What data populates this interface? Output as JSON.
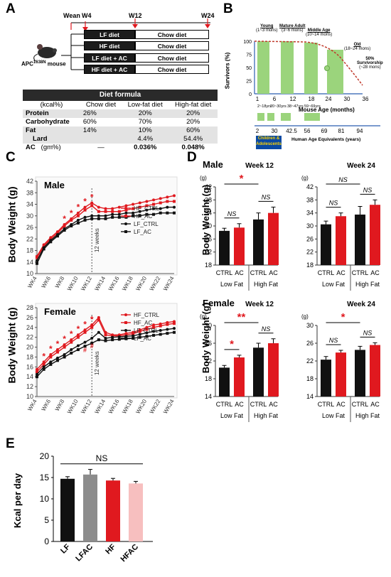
{
  "panelA": {
    "label": "A",
    "timeline": {
      "wean": "Wean",
      "w4": "W4",
      "w12": "W12",
      "w24": "W24"
    },
    "mouse_label": "APC",
    "mouse_sup": "1638N",
    "mouse_suffix": " mouse",
    "diets": [
      {
        "first": "LF diet",
        "second": "Chow diet"
      },
      {
        "first": "HF diet",
        "second": "Chow diet"
      },
      {
        "first": "LF diet + AC",
        "second": "Chow diet"
      },
      {
        "first": "HF diet + AC",
        "second": "Chow diet"
      }
    ],
    "table": {
      "title": "Diet formula",
      "header": [
        "(kcal%)",
        "Chow diet",
        "Low-fat diet",
        "High-fat diet"
      ],
      "rows": [
        [
          "Protein",
          "26%",
          "20%",
          "20%"
        ],
        [
          "Carbohydrate",
          "60%",
          "70%",
          "20%"
        ],
        [
          "Fat",
          "14%",
          "10%",
          "60%"
        ],
        [
          "Lard",
          "",
          "4.4%",
          "54.4%"
        ],
        [
          "AC",
          "(gm%)",
          "—",
          "0.036%",
          "0.048%"
        ]
      ]
    }
  },
  "panelB": {
    "label": "B",
    "ylabel": "Survivors (%)",
    "xlabel": "Mouse Age (months)",
    "xticks": [
      "1",
      "6",
      "12",
      "18",
      "24",
      "30",
      "36"
    ],
    "yticks": [
      "100",
      "75",
      "50",
      "25",
      "0"
    ],
    "stages": [
      {
        "name": "Young",
        "range": "(1~3 mons)"
      },
      {
        "name": "Mature Adult",
        "range": "(3~6 mons)"
      },
      {
        "name": "Middle Age",
        "range": "(10~14 mons)"
      },
      {
        "name": "Old",
        "range": "(18~24 mons)"
      }
    ],
    "survivorship": "50%",
    "survivorship2": "Survivorship",
    "survivorship3": "(~28 mons)",
    "human_ranges": [
      "2~18yrs",
      "20~30yrs",
      "38~47yrs",
      "59~69yrs"
    ],
    "human_ticks": [
      "2",
      "30",
      "42.5",
      "56",
      "69",
      "81",
      "94"
    ],
    "human_label": "Human Age Equivalents (years)",
    "children_label1": "Children &",
    "children_label2": "Adolescents"
  },
  "panelC": {
    "label": "C",
    "ylabel": "Body Weight (g)",
    "male": {
      "title": "Male",
      "yticks": [
        10,
        14,
        18,
        22,
        26,
        30,
        34,
        38,
        42
      ],
      "ylim": [
        10,
        42
      ]
    },
    "female": {
      "title": "Female",
      "yticks": [
        10,
        12,
        14,
        16,
        18,
        20,
        22,
        24,
        26,
        28
      ],
      "ylim": [
        10,
        28
      ]
    },
    "xticks": [
      "WK4",
      "WK6",
      "WK8",
      "WK10",
      "WK12",
      "WK14",
      "WK16",
      "WK18",
      "WK20",
      "WK22",
      "WK24"
    ],
    "marker_text": "12 weeks",
    "legend": [
      "HF_CTRL",
      "HF_AC",
      "LF_CTRL",
      "LF_AC"
    ]
  },
  "panelD": {
    "label": "D",
    "ylabel": "Body Weight (g)",
    "unit": "(g)",
    "male_title": "Male",
    "female_title": "Female",
    "week12": "Week 12",
    "week24": "Week 24",
    "ns": "NS",
    "star1": "*",
    "star2": "**",
    "bar_labels": [
      "CTRL",
      "AC",
      "CTRL",
      "AC"
    ],
    "group_labels": [
      "Low Fat",
      "High Fat"
    ]
  },
  "panelE": {
    "label": "E",
    "ylabel": "Kcal per day",
    "ns": "NS"
  },
  "colors": {
    "hf": "#e0191f",
    "lf": "#111111",
    "lfac_bar": "#8c8c8c",
    "hfac_bar": "#f7bfbf",
    "green": "#9bd47c"
  },
  "chart_data": [
    {
      "id": "C-male",
      "type": "line",
      "title": "Male",
      "ylabel": "Body Weight (g)",
      "ylim": [
        10,
        42
      ],
      "x": [
        4,
        5,
        6,
        7,
        8,
        9,
        10,
        11,
        12,
        13,
        14,
        15,
        16,
        17,
        18,
        19,
        20,
        21,
        22,
        23,
        24
      ],
      "series": [
        {
          "name": "HF_CTRL",
          "values": [
            16,
            20,
            22.5,
            24.5,
            27,
            29,
            31,
            33,
            34.5,
            33,
            32.5,
            32.5,
            33,
            33.5,
            34,
            34.5,
            35,
            35.5,
            36,
            36.5,
            37
          ]
        },
        {
          "name": "HF_AC",
          "values": [
            15.5,
            19.5,
            22,
            24,
            26.5,
            28.5,
            30,
            32,
            33.5,
            31.5,
            31.5,
            31.5,
            31.5,
            32,
            32.5,
            33,
            33.5,
            34,
            34.5,
            35,
            35
          ]
        },
        {
          "name": "LF_CTRL",
          "values": [
            14.5,
            19,
            21.5,
            23.5,
            25.5,
            27,
            28.5,
            29.5,
            30,
            30,
            30,
            30.5,
            30.5,
            31,
            31,
            31.5,
            32,
            32.5,
            32.5,
            33,
            33
          ]
        },
        {
          "name": "LF_AC",
          "values": [
            13.5,
            18.5,
            21,
            23,
            25,
            26.5,
            27.5,
            28.5,
            29,
            29,
            29,
            29.5,
            29.5,
            29.5,
            30,
            30,
            30.5,
            30.5,
            31,
            31,
            31
          ]
        }
      ],
      "star_x": [
        8,
        9,
        10,
        11,
        12
      ]
    },
    {
      "id": "C-female",
      "type": "line",
      "title": "Female",
      "ylabel": "Body Weight (g)",
      "ylim": [
        10,
        28
      ],
      "x": [
        4,
        5,
        6,
        7,
        8,
        9,
        10,
        11,
        12,
        13,
        14,
        15,
        16,
        17,
        18,
        19,
        20,
        21,
        22,
        23,
        24
      ],
      "series": [
        {
          "name": "HF_CTRL",
          "values": [
            15.5,
            17,
            18.5,
            19.5,
            20.5,
            21.5,
            22.5,
            23.5,
            24.5,
            26,
            23,
            22.5,
            22.5,
            22.8,
            23,
            23.5,
            24,
            24.5,
            24.7,
            25,
            25.2
          ]
        },
        {
          "name": "HF_AC",
          "values": [
            15,
            16.5,
            18,
            19,
            20,
            21,
            22,
            23,
            24,
            25.5,
            22.5,
            22.3,
            22.3,
            22.5,
            22.7,
            23.2,
            23.6,
            24,
            24.3,
            24.6,
            24.8
          ]
        },
        {
          "name": "LF_CTRL",
          "values": [
            14.5,
            16,
            17,
            17.8,
            18.5,
            19.5,
            20.3,
            21,
            21.8,
            23,
            21.8,
            22,
            22.1,
            22.2,
            22.3,
            22.6,
            22.9,
            23.2,
            23.4,
            23.6,
            23.8
          ]
        },
        {
          "name": "LF_AC",
          "values": [
            14,
            15.5,
            16.5,
            17.3,
            18,
            18.8,
            19.5,
            20.2,
            20.8,
            21.5,
            21.3,
            21.5,
            21.6,
            21.7,
            21.8,
            22,
            22.2,
            22.4,
            22.6,
            22.8,
            23
          ]
        }
      ],
      "star_x": [
        5,
        6,
        7,
        8,
        9,
        10,
        11,
        12
      ],
      "hash_x": [
        11,
        12
      ]
    },
    {
      "id": "D-male-12",
      "type": "bar",
      "title": "Week 12",
      "categories": [
        "CTRL",
        "AC",
        "CTRL",
        "AC"
      ],
      "values": [
        28.5,
        29.5,
        32,
        34
      ],
      "errors": [
        0.8,
        1.2,
        2,
        1.8
      ],
      "ylim": [
        18,
        42
      ],
      "yticks": [
        18,
        22,
        26,
        30,
        34,
        38,
        42
      ]
    },
    {
      "id": "D-male-24",
      "type": "bar",
      "title": "Week 24",
      "categories": [
        "CTRL",
        "AC",
        "CTRL",
        "AC"
      ],
      "values": [
        30.5,
        33,
        33.5,
        36.5
      ],
      "errors": [
        1,
        1,
        2.5,
        1.5
      ],
      "ylim": [
        18,
        42
      ],
      "yticks": [
        18,
        22,
        26,
        30,
        34,
        38,
        42
      ]
    },
    {
      "id": "D-female-12",
      "type": "bar",
      "title": "Week 12",
      "categories": [
        "CTRL",
        "AC",
        "CTRL",
        "AC"
      ],
      "values": [
        20.5,
        22.8,
        25,
        26
      ],
      "errors": [
        0.5,
        0.5,
        1,
        1
      ],
      "ylim": [
        14,
        30
      ],
      "yticks": [
        14,
        18,
        22,
        26,
        30
      ]
    },
    {
      "id": "D-female-24",
      "type": "bar",
      "title": "Week 24",
      "categories": [
        "CTRL",
        "AC",
        "CTRL",
        "AC"
      ],
      "values": [
        22.3,
        23.9,
        24.5,
        25.6
      ],
      "errors": [
        0.7,
        0.5,
        0.8,
        0.5
      ],
      "ylim": [
        14,
        30
      ],
      "yticks": [
        14,
        18,
        22,
        26,
        30
      ]
    },
    {
      "id": "E",
      "type": "bar",
      "ylabel": "Kcal per day",
      "categories": [
        "LF",
        "LFAC",
        "HF",
        "HFAC"
      ],
      "values": [
        14.7,
        15.7,
        14.3,
        13.6
      ],
      "errors": [
        0.5,
        1.2,
        0.5,
        0.5
      ],
      "ylim": [
        0,
        20
      ],
      "yticks": [
        0,
        5,
        10,
        15,
        20
      ]
    }
  ]
}
